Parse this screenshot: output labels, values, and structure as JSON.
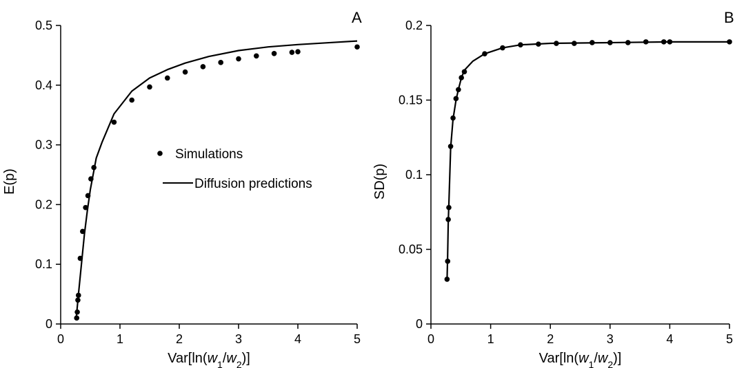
{
  "chart_data": [
    {
      "type": "scatter",
      "panel_label": "A",
      "xlabel": {
        "pre": "Var[ln(",
        "w1": "w",
        "sub1": "1",
        "slash": "/",
        "w2": "w",
        "sub2": "2",
        "post": ")]"
      },
      "ylabel": "E(p)",
      "xlim": [
        0,
        5
      ],
      "ylim": [
        0,
        0.5
      ],
      "xticks": [
        0,
        1,
        2,
        3,
        4,
        5
      ],
      "xtick_labels": [
        "0",
        "1",
        "2",
        "3",
        "4",
        "5"
      ],
      "yticks": [
        0,
        0.1,
        0.2,
        0.3,
        0.4,
        0.5
      ],
      "ytick_labels": [
        "0",
        "0.1",
        "0.2",
        "0.3",
        "0.4",
        "0.5"
      ],
      "grid": false,
      "legend": {
        "position": "center-right",
        "entries": [
          {
            "label": "Simulations",
            "marker": "dot"
          },
          {
            "label": "Diffusion predictions",
            "marker": "line"
          }
        ]
      },
      "series": [
        {
          "name": "Simulations",
          "kind": "points",
          "x": [
            0.27,
            0.28,
            0.29,
            0.3,
            0.33,
            0.37,
            0.42,
            0.46,
            0.51,
            0.56,
            0.9,
            1.2,
            1.5,
            1.8,
            2.1,
            2.4,
            2.7,
            3.0,
            3.3,
            3.6,
            3.9,
            4.0,
            5.0
          ],
          "y": [
            0.01,
            0.02,
            0.04,
            0.048,
            0.11,
            0.155,
            0.195,
            0.215,
            0.243,
            0.262,
            0.338,
            0.375,
            0.397,
            0.412,
            0.422,
            0.431,
            0.438,
            0.444,
            0.449,
            0.453,
            0.455,
            0.456,
            0.464
          ]
        },
        {
          "name": "Diffusion predictions",
          "kind": "line",
          "x": [
            0.26,
            0.3,
            0.35,
            0.4,
            0.45,
            0.5,
            0.6,
            0.7,
            0.9,
            1.2,
            1.5,
            1.8,
            2.1,
            2.5,
            3.0,
            3.5,
            4.0,
            4.5,
            5.0
          ],
          "y": [
            0.008,
            0.05,
            0.1,
            0.15,
            0.19,
            0.225,
            0.278,
            0.305,
            0.352,
            0.39,
            0.412,
            0.426,
            0.437,
            0.448,
            0.458,
            0.464,
            0.468,
            0.471,
            0.474
          ]
        }
      ]
    },
    {
      "type": "scatter",
      "panel_label": "B",
      "xlabel": {
        "pre": "Var[ln(",
        "w1": "w",
        "sub1": "1",
        "slash": "/",
        "w2": "w",
        "sub2": "2",
        "post": ")]"
      },
      "ylabel": "SD(p)",
      "xlim": [
        0,
        5
      ],
      "ylim": [
        0,
        0.2
      ],
      "xticks": [
        0,
        1,
        2,
        3,
        4,
        5
      ],
      "xtick_labels": [
        "0",
        "1",
        "2",
        "3",
        "4",
        "5"
      ],
      "yticks": [
        0,
        0.05,
        0.1,
        0.15,
        0.2
      ],
      "ytick_labels": [
        "0",
        "0.05",
        "0.1",
        "0.15",
        "0.2"
      ],
      "grid": false,
      "series": [
        {
          "name": "Simulations",
          "kind": "points",
          "x": [
            0.27,
            0.28,
            0.29,
            0.3,
            0.33,
            0.37,
            0.42,
            0.46,
            0.51,
            0.56,
            0.9,
            1.2,
            1.5,
            1.8,
            2.1,
            2.4,
            2.7,
            3.0,
            3.3,
            3.6,
            3.9,
            4.0,
            5.0
          ],
          "y": [
            0.03,
            0.042,
            0.07,
            0.078,
            0.119,
            0.138,
            0.151,
            0.157,
            0.165,
            0.169,
            0.181,
            0.185,
            0.187,
            0.1875,
            0.188,
            0.188,
            0.1885,
            0.1885,
            0.1885,
            0.189,
            0.189,
            0.189,
            0.189
          ]
        },
        {
          "name": "Diffusion predictions",
          "kind": "line",
          "x": [
            0.27,
            0.28,
            0.29,
            0.3,
            0.33,
            0.37,
            0.42,
            0.46,
            0.51,
            0.56,
            0.7,
            0.9,
            1.2,
            1.5,
            2.0,
            3.0,
            4.0,
            5.0
          ],
          "y": [
            0.03,
            0.045,
            0.068,
            0.08,
            0.118,
            0.137,
            0.15,
            0.157,
            0.165,
            0.17,
            0.176,
            0.181,
            0.185,
            0.187,
            0.188,
            0.1885,
            0.189,
            0.189
          ]
        }
      ]
    }
  ]
}
